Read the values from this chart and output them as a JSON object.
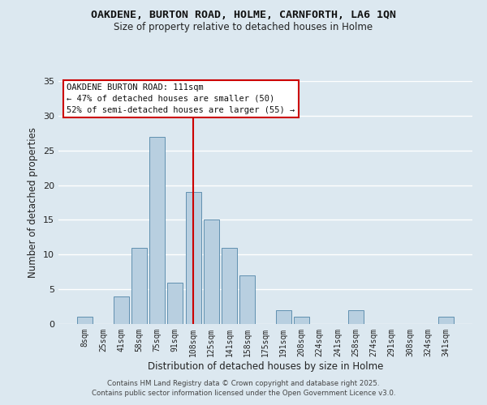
{
  "title": "OAKDENE, BURTON ROAD, HOLME, CARNFORTH, LA6 1QN",
  "subtitle": "Size of property relative to detached houses in Holme",
  "xlabel": "Distribution of detached houses by size in Holme",
  "ylabel": "Number of detached properties",
  "bar_labels": [
    "8sqm",
    "25sqm",
    "41sqm",
    "58sqm",
    "75sqm",
    "91sqm",
    "108sqm",
    "125sqm",
    "141sqm",
    "158sqm",
    "175sqm",
    "191sqm",
    "208sqm",
    "224sqm",
    "241sqm",
    "258sqm",
    "274sqm",
    "291sqm",
    "308sqm",
    "324sqm",
    "341sqm"
  ],
  "bar_values": [
    1,
    0,
    4,
    11,
    27,
    6,
    19,
    15,
    11,
    7,
    0,
    2,
    1,
    0,
    0,
    2,
    0,
    0,
    0,
    0,
    1
  ],
  "bar_color": "#b8cfe0",
  "bar_edge_color": "#6090b0",
  "ylim": [
    0,
    35
  ],
  "yticks": [
    0,
    5,
    10,
    15,
    20,
    25,
    30,
    35
  ],
  "vline_x": 6,
  "vline_color": "#cc0000",
  "annotation_title": "OAKDENE BURTON ROAD: 111sqm",
  "annotation_line1": "← 47% of detached houses are smaller (50)",
  "annotation_line2": "52% of semi-detached houses are larger (55) →",
  "annotation_box_color": "#ffffff",
  "annotation_box_edge": "#cc0000",
  "background_color": "#dce8f0",
  "grid_color": "#ffffff",
  "footer_line1": "Contains HM Land Registry data © Crown copyright and database right 2025.",
  "footer_line2": "Contains public sector information licensed under the Open Government Licence v3.0."
}
